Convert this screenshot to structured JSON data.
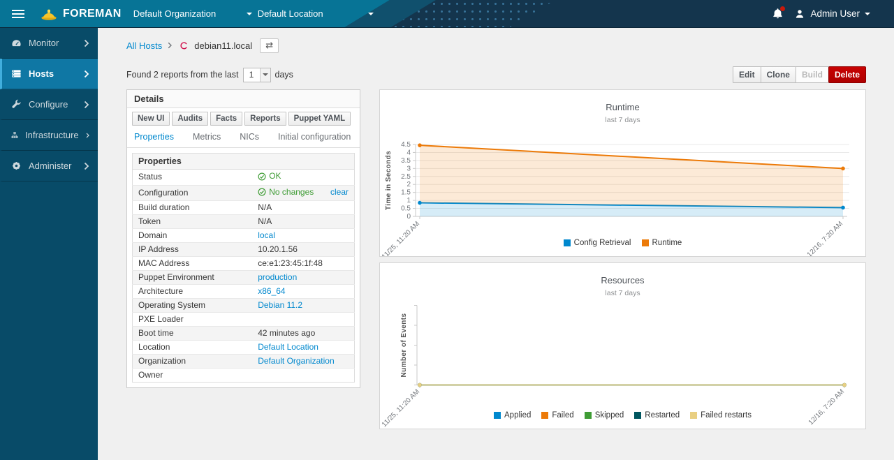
{
  "navbar": {
    "brand": "FOREMAN",
    "org_selector": "Default Organization",
    "loc_selector": "Default Location",
    "user": "Admin User"
  },
  "sidebar": {
    "items": [
      {
        "label": "Monitor",
        "icon": "gauge-icon",
        "active": false
      },
      {
        "label": "Hosts",
        "icon": "server-icon",
        "active": true
      },
      {
        "label": "Configure",
        "icon": "wrench-icon",
        "active": false
      },
      {
        "label": "Infrastructure",
        "icon": "sitemap-icon",
        "active": false
      },
      {
        "label": "Administer",
        "icon": "gear-icon",
        "active": false
      }
    ]
  },
  "breadcrumb": {
    "parent": "All Hosts",
    "current": "debian11.local"
  },
  "report_bar": {
    "prefix": "Found 2 reports from the last",
    "select_value": "1",
    "suffix": "days"
  },
  "actions": {
    "edit": "Edit",
    "clone": "Clone",
    "build": "Build",
    "delete": "Delete"
  },
  "details": {
    "title": "Details",
    "buttons": [
      "New UI",
      "Audits",
      "Facts",
      "Reports",
      "Puppet YAML"
    ],
    "tabs": [
      {
        "label": "Properties",
        "active": true
      },
      {
        "label": "Metrics",
        "active": false
      },
      {
        "label": "NICs",
        "active": false
      },
      {
        "label": "Initial configuration",
        "active": false
      }
    ],
    "section_title": "Properties",
    "rows": [
      {
        "label": "Status",
        "value": "OK",
        "type": "status"
      },
      {
        "label": "Configuration",
        "value": "No changes",
        "type": "status",
        "action": "clear"
      },
      {
        "label": "Build duration",
        "value": "N/A",
        "type": "text"
      },
      {
        "label": "Token",
        "value": "N/A",
        "type": "text"
      },
      {
        "label": "Domain",
        "value": "local",
        "type": "link"
      },
      {
        "label": "IP Address",
        "value": "10.20.1.56",
        "type": "text"
      },
      {
        "label": "MAC Address",
        "value": "ce:e1:23:45:1f:48",
        "type": "text"
      },
      {
        "label": "Puppet Environment",
        "value": "production",
        "type": "link"
      },
      {
        "label": "Architecture",
        "value": "x86_64",
        "type": "link"
      },
      {
        "label": "Operating System",
        "value": "Debian 11.2",
        "type": "link"
      },
      {
        "label": "PXE Loader",
        "value": "",
        "type": "empty"
      },
      {
        "label": "Boot time",
        "value": "42 minutes ago",
        "type": "text"
      },
      {
        "label": "Location",
        "value": "Default Location",
        "type": "link"
      },
      {
        "label": "Organization",
        "value": "Default Organization",
        "type": "link"
      },
      {
        "label": "Owner",
        "value": "",
        "type": "empty"
      }
    ]
  },
  "chart_data": [
    {
      "type": "area",
      "title": "Runtime",
      "subtitle": "last 7 days",
      "ylabel": "Time in Seconds",
      "x_labels": [
        "11/25, 11:20 AM",
        "12/16, 7:20 AM"
      ],
      "ylim": [
        0,
        4.5
      ],
      "yticks": [
        0,
        0.5,
        1,
        1.5,
        2,
        2.5,
        3,
        3.5,
        4,
        4.5
      ],
      "grid": true,
      "stacked": true,
      "legend_position": "bottom",
      "series": [
        {
          "name": "Config Retrieval",
          "color": "#0088ce",
          "values": [
            0.85,
            0.55
          ]
        },
        {
          "name": "Runtime",
          "color": "#ec7a08",
          "values": [
            4.45,
            3.0
          ]
        }
      ]
    },
    {
      "type": "area",
      "title": "Resources",
      "subtitle": "last 7 days",
      "ylabel": "Number of Events",
      "x_labels": [
        "11/25, 11:20 AM",
        "12/16, 7:20 AM"
      ],
      "ylim": [
        0,
        1
      ],
      "yticks": [],
      "grid": false,
      "stacked": false,
      "legend_position": "bottom",
      "series": [
        {
          "name": "Applied",
          "color": "#0088ce",
          "values": [
            0,
            0
          ]
        },
        {
          "name": "Failed",
          "color": "#ec7a08",
          "values": [
            0,
            0
          ]
        },
        {
          "name": "Skipped",
          "color": "#3f9c35",
          "values": [
            0,
            0
          ]
        },
        {
          "name": "Restarted",
          "color": "#00565f",
          "values": [
            0,
            0
          ]
        },
        {
          "name": "Failed restarts",
          "color": "#e9cf82",
          "values": [
            0,
            0
          ]
        }
      ]
    }
  ],
  "colors": {
    "accent": "#0088ce",
    "success": "#3f9c35",
    "danger": "#c00000",
    "navbar_teal": "#077496",
    "navbar_dark": "#14354d",
    "sidebar": "#084b68"
  }
}
